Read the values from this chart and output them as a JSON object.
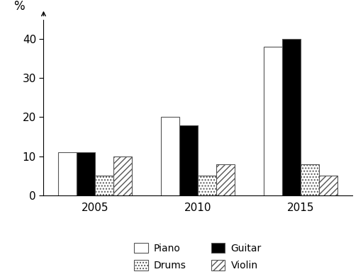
{
  "years": [
    "2005",
    "2010",
    "2015"
  ],
  "instruments": [
    "Piano",
    "Guitar",
    "Drums",
    "Violin"
  ],
  "values": {
    "Piano": [
      11,
      20,
      38
    ],
    "Guitar": [
      11,
      18,
      40
    ],
    "Drums": [
      5,
      5,
      8
    ],
    "Violin": [
      10,
      8,
      5
    ]
  },
  "colors": {
    "Piano": "white",
    "Guitar": "black",
    "Drums": "white",
    "Violin": "white"
  },
  "hatches": {
    "Piano": "",
    "Guitar": "",
    "Drums": "....",
    "Violin": "////"
  },
  "ylabel": "%",
  "ylim": [
    0,
    45
  ],
  "yticks": [
    0,
    10,
    20,
    30,
    40
  ],
  "bar_width": 0.18,
  "group_positions": [
    1.0,
    2.0,
    3.0
  ],
  "background_color": "#ffffff",
  "edgecolor": "#555555",
  "figsize": [
    5.12,
    3.94
  ],
  "dpi": 100
}
